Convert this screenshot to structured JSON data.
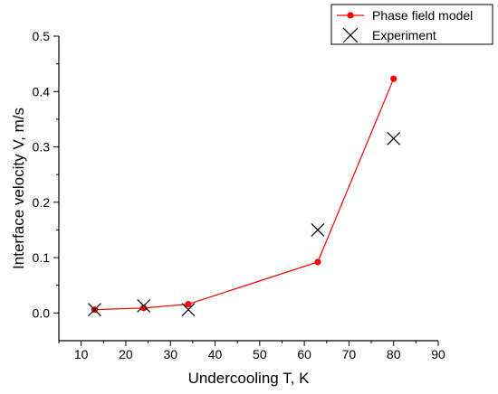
{
  "chart_data": {
    "type": "line",
    "title": "",
    "xlabel": "Undercooling T, K",
    "ylabel": "Interface velocity V, m/s",
    "xlim": [
      5,
      90
    ],
    "ylim": [
      -0.05,
      0.5
    ],
    "x_ticks": [
      10,
      20,
      30,
      40,
      50,
      60,
      70,
      80,
      90
    ],
    "y_ticks": [
      0.0,
      0.1,
      0.2,
      0.3,
      0.4,
      0.5
    ],
    "x_tick_labels": [
      "10",
      "20",
      "30",
      "40",
      "50",
      "60",
      "70",
      "80",
      "90"
    ],
    "y_tick_labels": [
      "0.0",
      "0.1",
      "0.2",
      "0.3",
      "0.4",
      "0.5"
    ],
    "grid": false,
    "legend_position": "top-right",
    "series": [
      {
        "name": "Phase field model",
        "style": "line-with-dots",
        "color": "#ff0000",
        "points": [
          {
            "x": 13,
            "y": 0.006
          },
          {
            "x": 24,
            "y": 0.009
          },
          {
            "x": 34,
            "y": 0.016
          },
          {
            "x": 63,
            "y": 0.092
          },
          {
            "x": 80,
            "y": 0.423
          }
        ]
      },
      {
        "name": "Experiment",
        "style": "x-markers",
        "color": "#000000",
        "points": [
          {
            "x": 13,
            "y": 0.006
          },
          {
            "x": 24,
            "y": 0.013
          },
          {
            "x": 34,
            "y": 0.006
          },
          {
            "x": 63,
            "y": 0.15
          },
          {
            "x": 80,
            "y": 0.315
          }
        ]
      }
    ]
  }
}
